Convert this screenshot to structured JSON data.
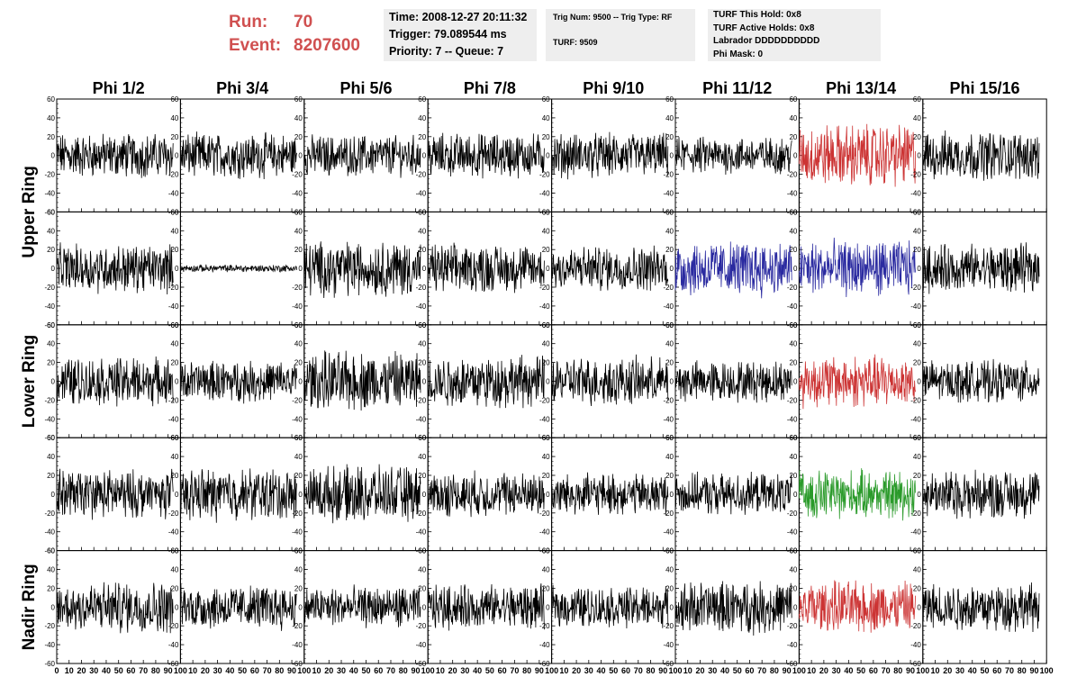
{
  "header": {
    "run_label": "Run:",
    "run_value": "70",
    "event_label": "Event:",
    "event_value": "8207600",
    "time_line": "Time: 2008-12-27 20:11:32",
    "trigger_line": "Trigger: 79.089544 ms",
    "priority_line": "Priority: 7 -- Queue: 7",
    "trig_num_line": "Trig Num: 9500 -- Trig Type: RF",
    "turf_line": "TURF: 9509",
    "turf_hold_line": "TURF This Hold: 0x8",
    "turf_active_line": "TURF Active Holds: 0x8",
    "labrador_line": "Labrador DDDDDDDDDD",
    "phi_mask_line": "Phi Mask: 0"
  },
  "chart_data": {
    "type": "line",
    "columns": [
      "Phi 1/2",
      "Phi 3/4",
      "Phi 5/6",
      "Phi 7/8",
      "Phi 9/10",
      "Phi 11/12",
      "Phi 13/14",
      "Phi 15/16"
    ],
    "ring_labels": [
      "Upper Ring",
      "Lower Ring",
      "Nadir Ring"
    ],
    "x_range": [
      0,
      100
    ],
    "y_range": [
      -60,
      60
    ],
    "x_ticks": [
      0,
      10,
      20,
      30,
      40,
      50,
      60,
      70,
      80,
      90,
      100
    ],
    "y_ticks": [
      -60,
      -40,
      -20,
      0,
      20,
      40,
      60
    ],
    "colors": {
      "default": "#000000",
      "red": "#cc3333",
      "blue": "#2a2aa0",
      "green": "#2a9a2a"
    },
    "rows": [
      {
        "ring": "Upper Ring",
        "amplitude": [
          12,
          12,
          11,
          12,
          12,
          10,
          17,
          13
        ],
        "color": [
          "default",
          "default",
          "default",
          "default",
          "default",
          "default",
          "red",
          "default"
        ]
      },
      {
        "ring": "Upper Ring",
        "amplitude": [
          13,
          2,
          15,
          13,
          12,
          15,
          15,
          13
        ],
        "color": [
          "default",
          "default",
          "default",
          "default",
          "default",
          "blue",
          "blue",
          "default"
        ]
      },
      {
        "ring": "Lower Ring",
        "amplitude": [
          13,
          11,
          16,
          14,
          13,
          11,
          14,
          11
        ],
        "color": [
          "default",
          "default",
          "default",
          "default",
          "default",
          "default",
          "red",
          "default"
        ]
      },
      {
        "ring": "Lower Ring",
        "amplitude": [
          13,
          14,
          15,
          12,
          11,
          11,
          13,
          13
        ],
        "color": [
          "default",
          "default",
          "default",
          "default",
          "default",
          "default",
          "green",
          "default"
        ]
      },
      {
        "ring": "Nadir Ring",
        "amplitude": [
          14,
          12,
          11,
          12,
          11,
          14,
          14,
          13
        ],
        "color": [
          "default",
          "default",
          "default",
          "default",
          "default",
          "default",
          "red",
          "default"
        ]
      }
    ]
  }
}
